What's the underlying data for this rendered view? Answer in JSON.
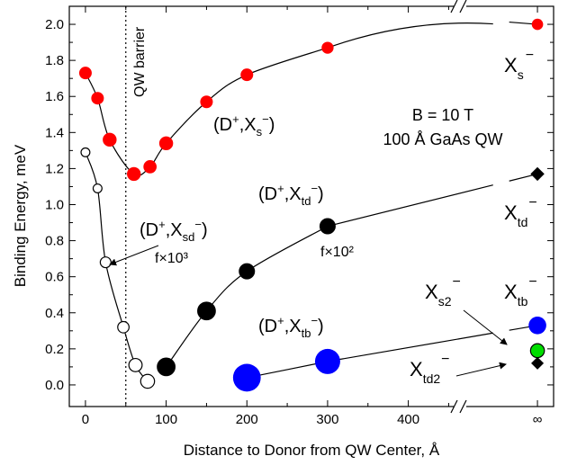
{
  "chart_data": {
    "type": "scatter",
    "title": "",
    "xlabel": "Distance to Donor from QW Center, Å",
    "ylabel": "Binding Energy, meV",
    "x_ticks": [
      "0",
      "100",
      "200",
      "300",
      "400",
      "∞"
    ],
    "y_ticks": [
      "0.0",
      "0.2",
      "0.4",
      "0.6",
      "0.8",
      "1.0",
      "1.2",
      "1.4",
      "1.6",
      "1.8",
      "2.0"
    ],
    "xlim": [
      -20,
      580
    ],
    "ylim": [
      -0.12,
      2.1
    ],
    "x_axis_break": true,
    "infinity_position": 560,
    "grid": false,
    "vertical_marker": {
      "x": 50,
      "label": "QW barrier"
    },
    "conditions": [
      "B = 10 T",
      "100 Å GaAs QW"
    ],
    "series": [
      {
        "name": "(D+,Xs−)",
        "label_parts": {
          "main": "(D",
          "sup1": "+",
          "comma": ",X",
          "sub": "s",
          "sup2": "−",
          "close": ")"
        },
        "color": "#ff0000",
        "points": [
          {
            "x": 0,
            "y": 1.73,
            "size": 1
          },
          {
            "x": 15,
            "y": 1.59,
            "size": 1
          },
          {
            "x": 30,
            "y": 1.36,
            "size": 1.1
          },
          {
            "x": 60,
            "y": 1.17,
            "size": 1.1
          },
          {
            "x": 80,
            "y": 1.21,
            "size": 1.05
          },
          {
            "x": 100,
            "y": 1.34,
            "size": 1.1
          },
          {
            "x": 150,
            "y": 1.57,
            "size": 1
          },
          {
            "x": 200,
            "y": 1.72,
            "size": 1
          },
          {
            "x": 300,
            "y": 1.87,
            "size": 0.95
          },
          {
            "x": "inf",
            "y": 2.0,
            "size": 0.9
          }
        ]
      },
      {
        "name": "(D+,Xsd−)",
        "label_parts": {
          "main": "(D",
          "sup1": "+",
          "comma": ",X",
          "sub": "sd",
          "sup2": "−",
          "close": ")"
        },
        "multiplier": "f×10³",
        "color": "#ffffff",
        "points": [
          {
            "x": 0,
            "y": 1.29,
            "size": 0.7
          },
          {
            "x": 15,
            "y": 1.09,
            "size": 0.7
          },
          {
            "x": 25,
            "y": 0.68,
            "size": 0.85
          },
          {
            "x": 47,
            "y": 0.32,
            "size": 0.9
          },
          {
            "x": 62,
            "y": 0.11,
            "size": 1.05
          },
          {
            "x": 77,
            "y": 0.02,
            "size": 1.1
          }
        ]
      },
      {
        "name": "(D+,Xtd−)",
        "label_parts": {
          "main": "(D",
          "sup1": "+",
          "comma": ",X",
          "sub": "td",
          "sup2": "−",
          "close": ")"
        },
        "multiplier": "f×10²",
        "color": "#000000",
        "points": [
          {
            "x": 100,
            "y": 0.1,
            "size": 1.4
          },
          {
            "x": 150,
            "y": 0.41,
            "size": 1.4
          },
          {
            "x": 200,
            "y": 0.63,
            "size": 1.2
          },
          {
            "x": 300,
            "y": 0.88,
            "size": 1.2
          },
          {
            "x": "inf",
            "y": 1.17,
            "size": 1,
            "shape": "diamond"
          }
        ]
      },
      {
        "name": "(D+,Xtb−)",
        "label_parts": {
          "main": "(D",
          "sup1": "+",
          "comma": ",X",
          "sub": "tb",
          "sup2": "−",
          "close": ")"
        },
        "color": "#0000ff",
        "points": [
          {
            "x": 200,
            "y": 0.04,
            "size": 2.2
          },
          {
            "x": 300,
            "y": 0.13,
            "size": 2.0
          },
          {
            "x": "inf",
            "y": 0.33,
            "size": 1.4
          }
        ]
      },
      {
        "name": "Xs2−",
        "color": "#00dd00",
        "points": [
          {
            "x": "inf",
            "y": 0.19,
            "size": 1.1
          }
        ]
      },
      {
        "name": "Xtd2−",
        "color": "#000000",
        "points": [
          {
            "x": "inf",
            "y": 0.12,
            "size": 0.9,
            "shape": "diamond"
          }
        ]
      }
    ],
    "infinity_labels": {
      "xs": {
        "main": "X",
        "sub": "s",
        "sup": "−"
      },
      "xtd": {
        "main": "X",
        "sub": "td",
        "sup": "−"
      },
      "xtb": {
        "main": "X",
        "sub": "tb",
        "sup": "−"
      },
      "xs2": {
        "main": "X",
        "sub": "s2",
        "sup": "−"
      },
      "xtd2": {
        "main": "X",
        "sub": "td2",
        "sup": "−"
      }
    }
  }
}
